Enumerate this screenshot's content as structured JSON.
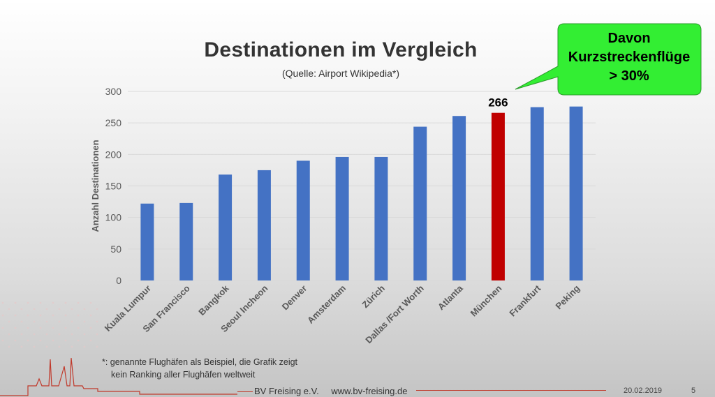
{
  "slide": {
    "title": "Destinationen im Vergleich",
    "subtitle": "(Quelle: Airport Wikipedia*)",
    "callout": {
      "lines": [
        "Davon",
        "Kurzstreckenflüge",
        "> 30%"
      ],
      "fill": "#33ee33"
    },
    "footnote": {
      "line1": "*: genannte Flughäfen als Beispiel, die Grafik zeigt",
      "line2": "kein Ranking aller Flughäfen weltweit"
    },
    "footer": {
      "org": "BV Freising e.V.",
      "url": "www.bv-freising.de",
      "date": "20.02.2019",
      "page": "5"
    }
  },
  "chart_data": {
    "type": "bar",
    "ylabel": "Anzahl Destinationen",
    "xlabel": "",
    "ylim": [
      0,
      300
    ],
    "yticks": [
      0,
      50,
      100,
      150,
      200,
      250,
      300
    ],
    "categories": [
      "Kuala Lumpur",
      "San Francisco",
      "Bangkok",
      "Seoul Incheon",
      "Denver",
      "Amsterdam",
      "Zürich",
      "Dallas /Fort Worth",
      "Atlanta",
      "München",
      "Frankfurt",
      "Peking"
    ],
    "values": [
      122,
      123,
      168,
      175,
      190,
      196,
      196,
      244,
      261,
      266,
      275,
      276
    ],
    "highlight_index": 9,
    "highlight_label": "266",
    "colors": {
      "bar": "#4472c4",
      "highlight": "#c00000",
      "grid": "#d9d9d9",
      "axis_text": "#595959"
    },
    "grid": true
  }
}
